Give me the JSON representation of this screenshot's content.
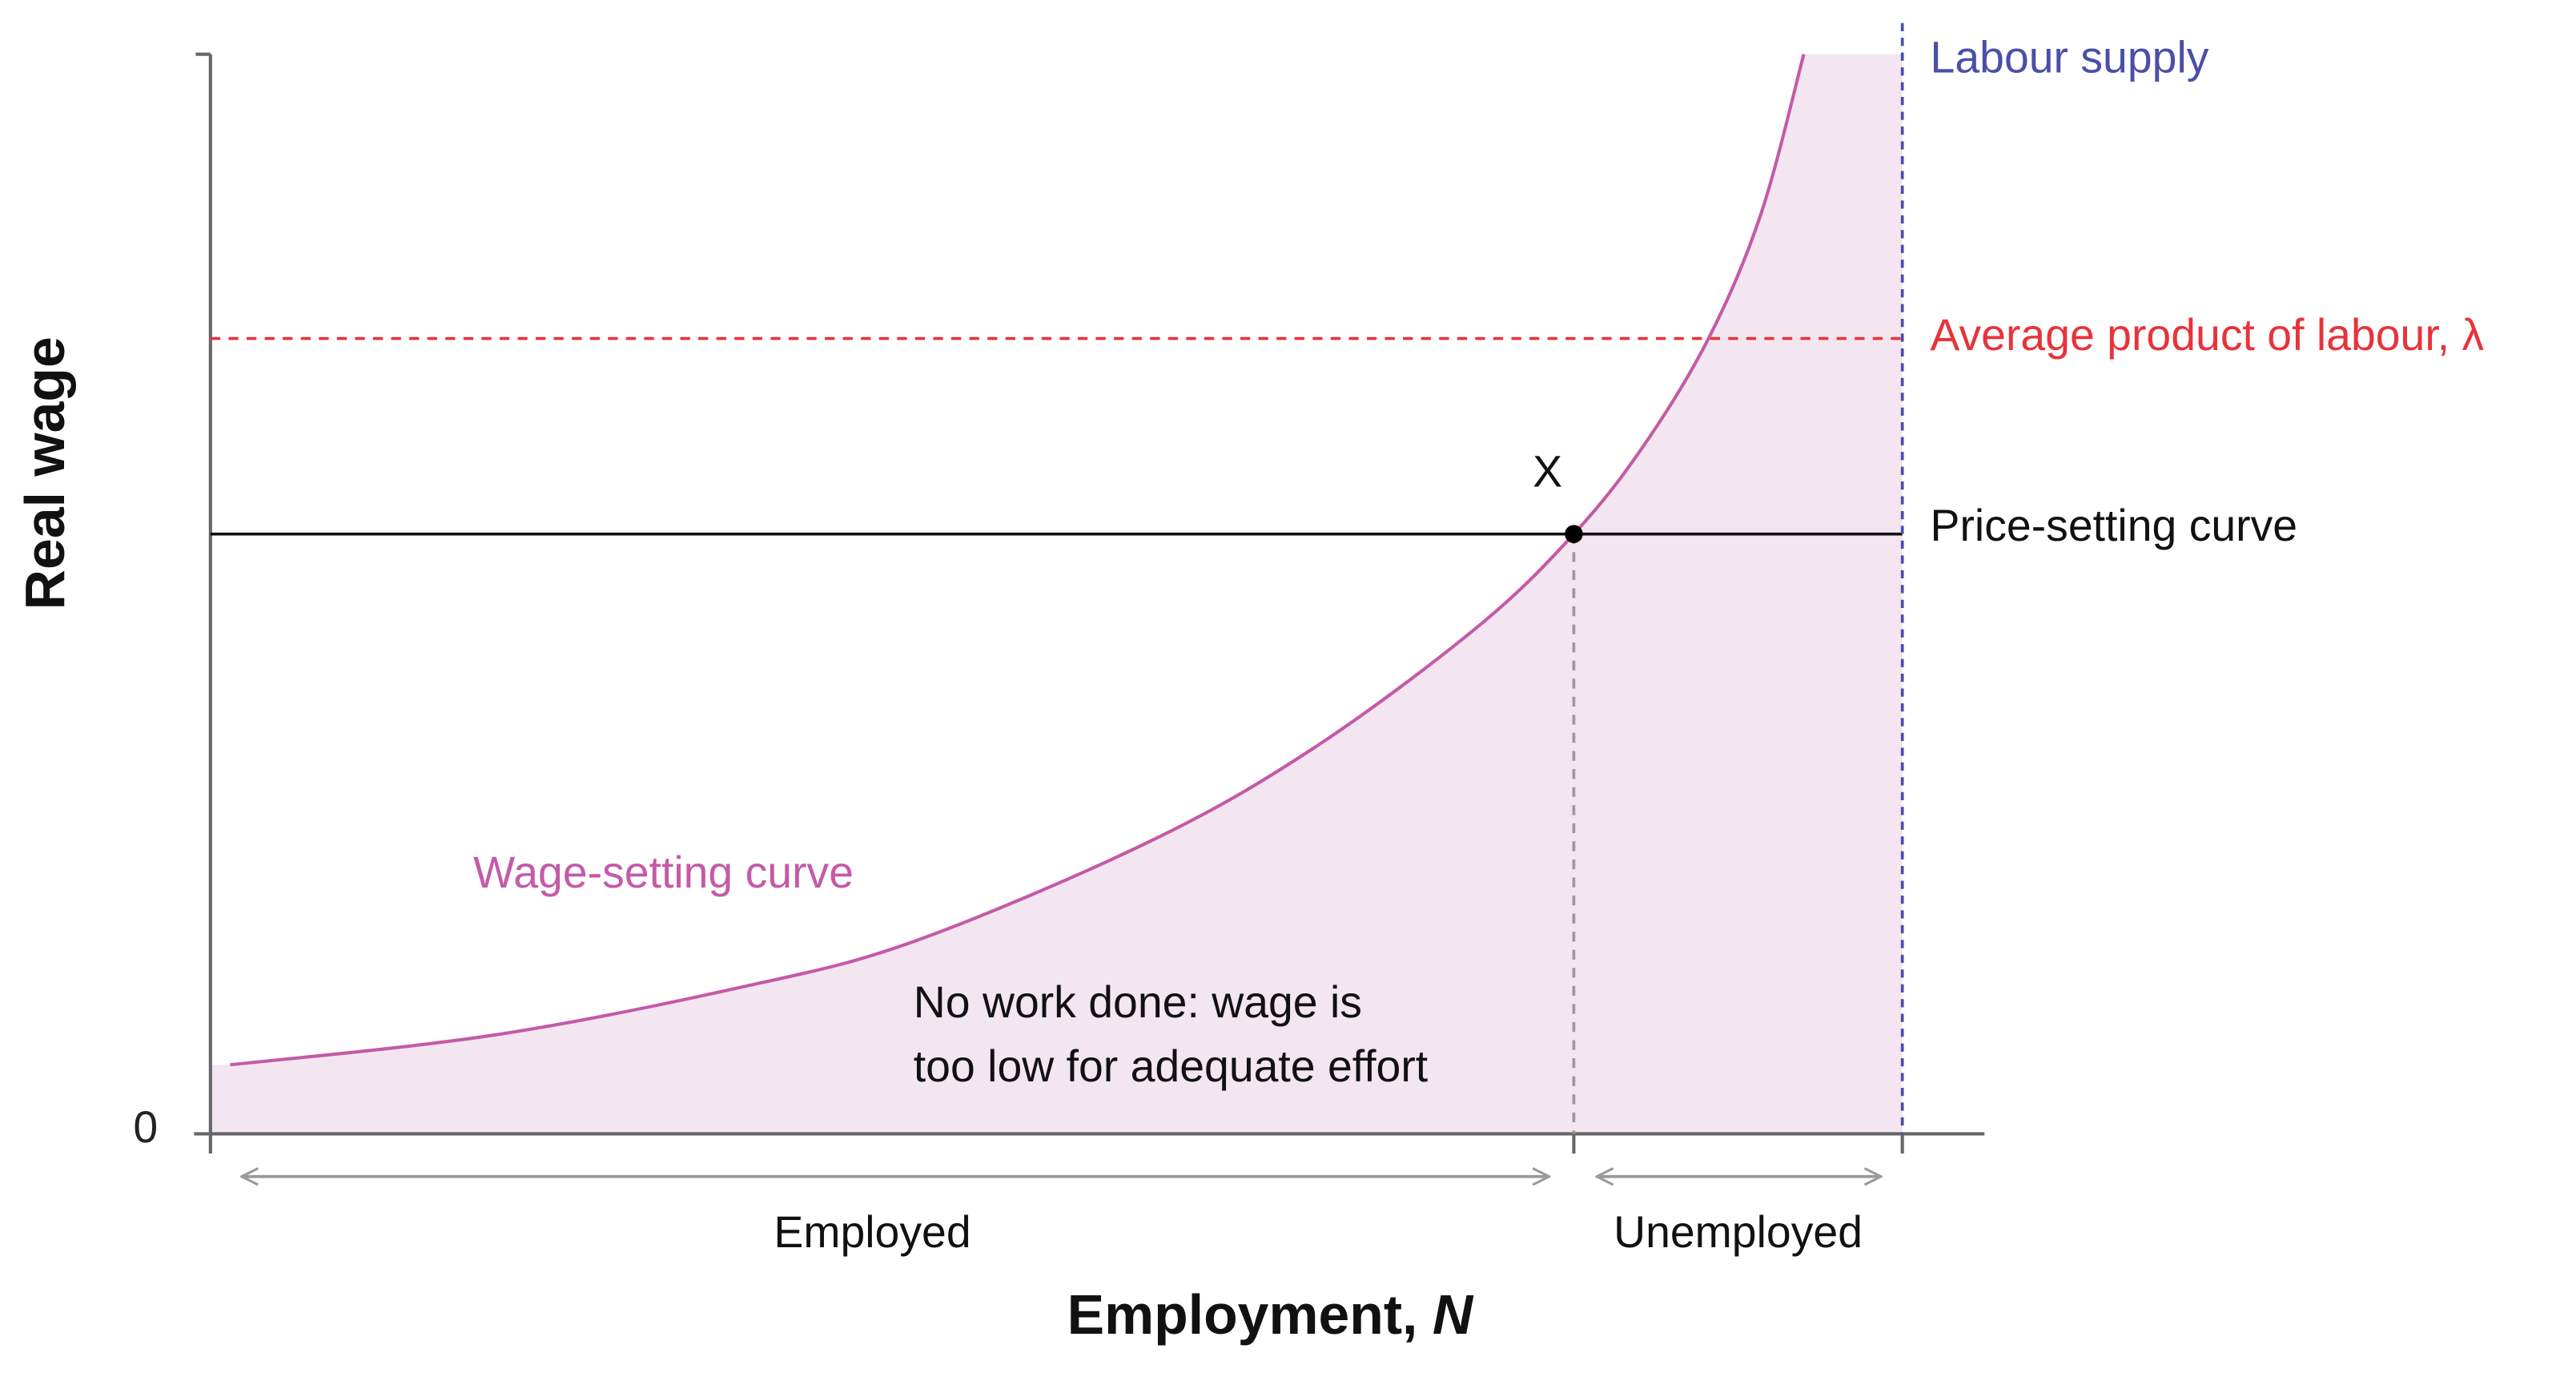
{
  "axes": {
    "y_title": "Real wage",
    "x_title": "Employment,",
    "x_variable": "N",
    "origin_label": "0"
  },
  "curves": {
    "labour_supply": "Labour supply",
    "average_product": "Average product of labour, λ",
    "price_setting": "Price-setting curve",
    "wage_setting": "Wage-setting curve"
  },
  "point": {
    "label": "X"
  },
  "annotation": {
    "lines": [
      "No work done: wage is",
      "too low for adequate effort"
    ]
  },
  "ranges": {
    "employed": "Employed",
    "unemployed": "Unemployed"
  }
}
